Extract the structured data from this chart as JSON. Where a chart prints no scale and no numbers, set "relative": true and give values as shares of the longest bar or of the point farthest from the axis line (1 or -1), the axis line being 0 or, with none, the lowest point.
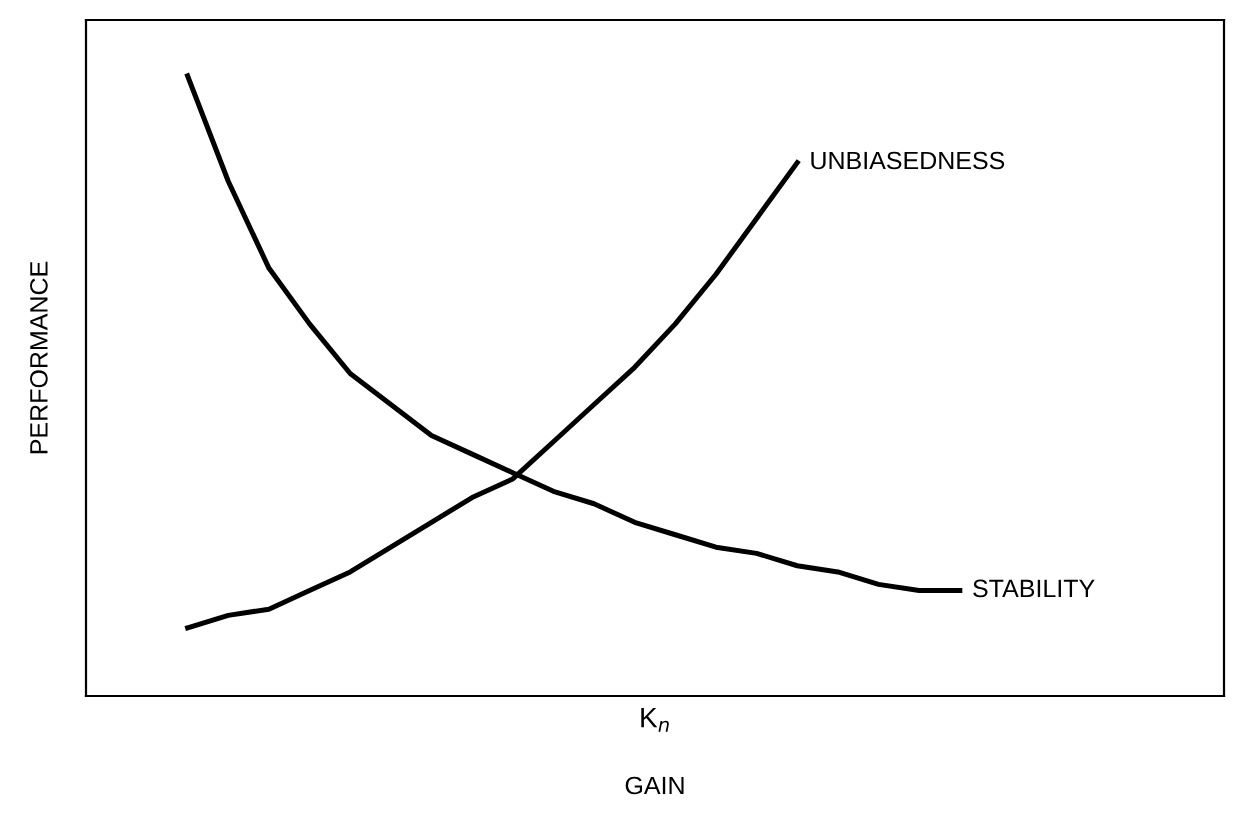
{
  "chart_data": {
    "type": "line",
    "relative": true,
    "ylabel": "PERFORMANCE",
    "xlabel": "K$_{n}$",
    "annotations": [
      "GAIN"
    ],
    "categories": [
      null,
      null,
      null,
      null,
      null,
      null,
      null,
      null,
      null,
      null,
      null,
      null,
      null,
      null,
      null,
      null,
      null,
      null,
      null,
      null,
      null,
      null,
      null,
      null,
      null,
      null,
      null,
      null
    ],
    "series": [
      {
        "name": "UNBIASEDNESS",
        "color": "#000000",
        "values": [
          null,
          null,
          0.11,
          0.13,
          0.14,
          0.17,
          0.2,
          0.24,
          0.28,
          0.32,
          0.35,
          0.41,
          0.47,
          0.53,
          0.6,
          0.68,
          0.77,
          0.86,
          null,
          null,
          null,
          null,
          null,
          null,
          null,
          null,
          null,
          null
        ]
      },
      {
        "name": "STABILITY",
        "color": "#000000",
        "values": [
          null,
          null,
          1,
          0.83,
          0.69,
          0.6,
          0.52,
          0.47,
          0.42,
          0.39,
          0.36,
          0.33,
          0.31,
          0.28,
          0.26,
          0.24,
          0.23,
          0.21,
          0.2,
          0.18,
          0.17,
          0.17,
          null,
          null,
          null,
          null,
          null,
          null
        ]
      }
    ],
    "tick_labels": false,
    "grid": false,
    "legend": false,
    "marker": "none",
    "line_style": "solid"
  }
}
